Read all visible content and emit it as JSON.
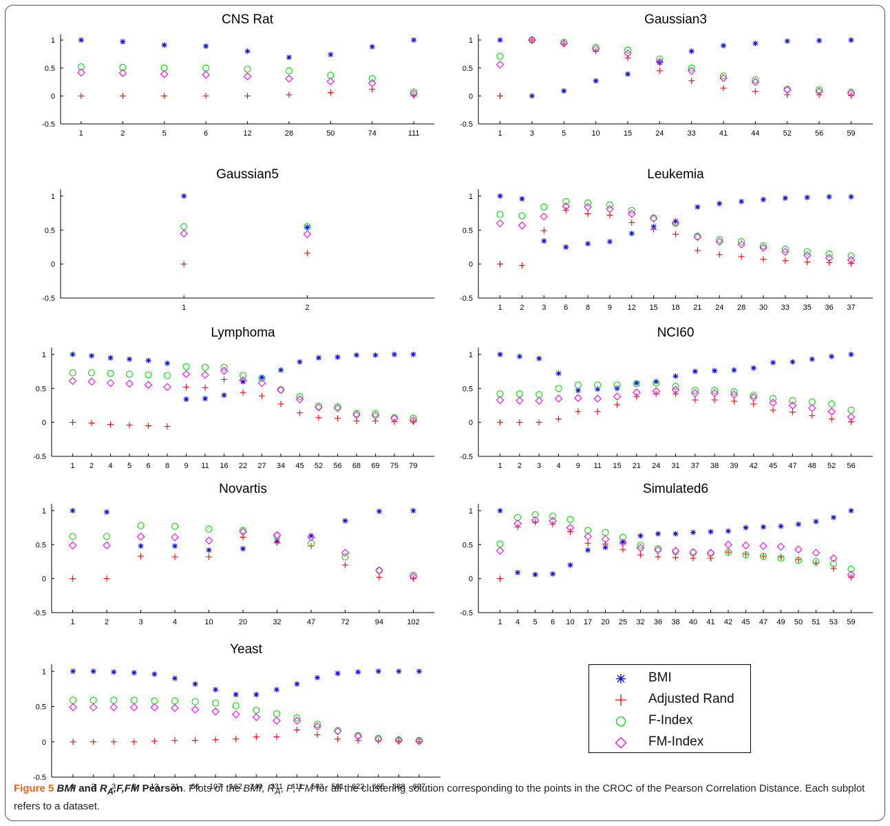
{
  "caption": {
    "figure_label": "Figure 5",
    "title_parts": [
      "BMI",
      " and ",
      "R",
      "A",
      ",F,FM",
      " Pearson"
    ],
    "text_parts": [
      ". Plots of the ",
      "BMI",
      ", ",
      "R",
      "A",
      ", ",
      "F",
      ", ",
      "FM",
      " for all the clustering solution corresponding to the points in the CROC of the Pearson Correlation Distance. Each subplot refers to a dataset."
    ]
  },
  "legend": {
    "position": "lower-right",
    "entries": [
      {
        "label": "BMI",
        "marker": "asterisk",
        "color": "#0000ff"
      },
      {
        "label": "Adjusted Rand",
        "marker": "plus",
        "color": "#ff0000"
      },
      {
        "label": "F-Index",
        "marker": "circle",
        "color": "#00dd00"
      },
      {
        "label": "FM-Index",
        "marker": "diamond",
        "color": "#ff00ff"
      }
    ]
  },
  "chart_data": [
    {
      "type": "scatter",
      "title": "CNS Rat",
      "ylim": [
        -0.5,
        1.1
      ],
      "yticks": [
        "-0.5",
        "0",
        "0.5",
        "1"
      ],
      "categories": [
        "1",
        "2",
        "5",
        "6",
        "12",
        "28",
        "50",
        "74",
        "111"
      ],
      "series": [
        {
          "name": "BMI",
          "values": [
            1.0,
            0.97,
            0.91,
            0.89,
            0.8,
            0.69,
            0.74,
            0.88,
            1.0
          ]
        },
        {
          "name": "Adjusted Rand",
          "values": [
            0.0,
            0.0,
            0.0,
            0.0,
            0.0,
            0.02,
            0.06,
            0.12,
            0.0
          ]
        },
        {
          "name": "F-Index",
          "values": [
            0.52,
            0.51,
            0.5,
            0.5,
            0.48,
            0.45,
            0.37,
            0.31,
            0.07
          ]
        },
        {
          "name": "FM-Index",
          "values": [
            0.42,
            0.41,
            0.39,
            0.38,
            0.35,
            0.31,
            0.26,
            0.23,
            0.04
          ]
        }
      ]
    },
    {
      "type": "scatter",
      "title": "Gaussian3",
      "ylim": [
        -0.5,
        1.1
      ],
      "yticks": [
        "-0.5",
        "0",
        "0.5",
        "1"
      ],
      "categories": [
        "1",
        "3",
        "5",
        "10",
        "15",
        "24",
        "33",
        "41",
        "44",
        "52",
        "56",
        "59"
      ],
      "series": [
        {
          "name": "BMI",
          "values": [
            1.0,
            0.0,
            0.09,
            0.27,
            0.39,
            0.6,
            0.8,
            0.9,
            0.94,
            0.98,
            0.99,
            1.0
          ]
        },
        {
          "name": "Adjusted Rand",
          "values": [
            0.0,
            1.0,
            0.93,
            0.8,
            0.68,
            0.45,
            0.27,
            0.14,
            0.08,
            0.02,
            0.02,
            0.01
          ]
        },
        {
          "name": "F-Index",
          "values": [
            0.71,
            1.0,
            0.96,
            0.87,
            0.82,
            0.66,
            0.5,
            0.36,
            0.29,
            0.12,
            0.11,
            0.07
          ]
        },
        {
          "name": "FM-Index",
          "values": [
            0.56,
            1.0,
            0.94,
            0.84,
            0.76,
            0.61,
            0.45,
            0.32,
            0.25,
            0.11,
            0.08,
            0.05
          ]
        }
      ]
    },
    {
      "type": "scatter",
      "title": "Gaussian5",
      "ylim": [
        -0.5,
        1.1
      ],
      "yticks": [
        "-0.5",
        "0",
        "0.5",
        "1"
      ],
      "categories": [
        "1",
        "2"
      ],
      "series": [
        {
          "name": "BMI",
          "values": [
            1.0,
            0.54
          ]
        },
        {
          "name": "Adjusted Rand",
          "values": [
            0.0,
            0.16
          ]
        },
        {
          "name": "F-Index",
          "values": [
            0.55,
            0.55
          ]
        },
        {
          "name": "FM-Index",
          "values": [
            0.45,
            0.44
          ]
        }
      ]
    },
    {
      "type": "scatter",
      "title": "Leukemia",
      "ylim": [
        -0.5,
        1.1
      ],
      "yticks": [
        "-0.5",
        "0",
        "0.5",
        "1"
      ],
      "categories": [
        "1",
        "2",
        "3",
        "6",
        "8",
        "9",
        "12",
        "15",
        "18",
        "21",
        "24",
        "28",
        "30",
        "33",
        "35",
        "36",
        "37"
      ],
      "series": [
        {
          "name": "BMI",
          "values": [
            1.0,
            0.96,
            0.34,
            0.25,
            0.3,
            0.33,
            0.45,
            0.55,
            0.63,
            0.84,
            0.89,
            0.92,
            0.95,
            0.97,
            0.98,
            0.99,
            0.99
          ]
        },
        {
          "name": "Adjusted Rand",
          "values": [
            0.0,
            -0.02,
            0.49,
            0.79,
            0.74,
            0.72,
            0.61,
            0.51,
            0.44,
            0.2,
            0.14,
            0.11,
            0.07,
            0.05,
            0.03,
            0.02,
            0.01
          ]
        },
        {
          "name": "F-Index",
          "values": [
            0.73,
            0.71,
            0.84,
            0.92,
            0.9,
            0.87,
            0.79,
            0.68,
            0.6,
            0.41,
            0.36,
            0.33,
            0.27,
            0.22,
            0.18,
            0.15,
            0.12
          ]
        },
        {
          "name": "FM-Index",
          "values": [
            0.6,
            0.57,
            0.7,
            0.85,
            0.84,
            0.81,
            0.74,
            0.67,
            0.61,
            0.4,
            0.33,
            0.29,
            0.24,
            0.18,
            0.13,
            0.09,
            0.06
          ]
        }
      ]
    },
    {
      "type": "scatter",
      "title": "Lymphoma",
      "ylim": [
        -0.5,
        1.1
      ],
      "yticks": [
        "-0.5",
        "0",
        "0.5",
        "1"
      ],
      "categories": [
        "1",
        "2",
        "4",
        "5",
        "6",
        "8",
        "9",
        "11",
        "16",
        "22",
        "27",
        "34",
        "45",
        "52",
        "56",
        "68",
        "69",
        "75",
        "79"
      ],
      "series": [
        {
          "name": "BMI",
          "values": [
            1.0,
            0.98,
            0.95,
            0.93,
            0.91,
            0.87,
            0.34,
            0.35,
            0.4,
            0.6,
            0.66,
            0.77,
            0.89,
            0.95,
            0.96,
            0.99,
            0.99,
            1.0,
            1.0
          ]
        },
        {
          "name": "Adjusted Rand",
          "values": [
            0.0,
            -0.01,
            -0.03,
            -0.04,
            -0.05,
            -0.06,
            0.52,
            0.51,
            0.63,
            0.44,
            0.39,
            0.27,
            0.14,
            0.07,
            0.06,
            0.02,
            0.02,
            0.01,
            0.01
          ]
        },
        {
          "name": "F-Index",
          "values": [
            0.73,
            0.73,
            0.72,
            0.71,
            0.7,
            0.69,
            0.82,
            0.81,
            0.81,
            0.69,
            0.65,
            0.48,
            0.38,
            0.24,
            0.23,
            0.13,
            0.13,
            0.07,
            0.06
          ]
        },
        {
          "name": "FM-Index",
          "values": [
            0.61,
            0.6,
            0.58,
            0.57,
            0.55,
            0.52,
            0.71,
            0.7,
            0.76,
            0.62,
            0.58,
            0.48,
            0.34,
            0.22,
            0.21,
            0.11,
            0.1,
            0.06,
            0.03
          ]
        }
      ]
    },
    {
      "type": "scatter",
      "title": "NCI60",
      "ylim": [
        -0.5,
        1.1
      ],
      "yticks": [
        "-0.5",
        "0",
        "0.5",
        "1"
      ],
      "categories": [
        "1",
        "2",
        "3",
        "4",
        "9",
        "11",
        "15",
        "21",
        "24",
        "31",
        "37",
        "38",
        "39",
        "42",
        "45",
        "47",
        "48",
        "52",
        "56"
      ],
      "series": [
        {
          "name": "BMI",
          "values": [
            1.0,
            0.97,
            0.94,
            0.72,
            0.47,
            0.49,
            0.5,
            0.58,
            0.6,
            0.68,
            0.75,
            0.76,
            0.77,
            0.8,
            0.88,
            0.89,
            0.93,
            0.97,
            1.0
          ]
        },
        {
          "name": "Adjusted Rand",
          "values": [
            0.0,
            0.0,
            0.0,
            0.05,
            0.16,
            0.16,
            0.26,
            0.38,
            0.42,
            0.42,
            0.33,
            0.33,
            0.31,
            0.27,
            0.18,
            0.15,
            0.1,
            0.05,
            0.01
          ]
        },
        {
          "name": "F-Index",
          "values": [
            0.42,
            0.42,
            0.41,
            0.5,
            0.55,
            0.55,
            0.55,
            0.57,
            0.58,
            0.53,
            0.47,
            0.47,
            0.45,
            0.4,
            0.35,
            0.32,
            0.3,
            0.27,
            0.18
          ]
        },
        {
          "name": "FM-Index",
          "values": [
            0.33,
            0.32,
            0.32,
            0.35,
            0.36,
            0.35,
            0.38,
            0.44,
            0.46,
            0.48,
            0.43,
            0.43,
            0.41,
            0.37,
            0.29,
            0.25,
            0.21,
            0.16,
            0.08
          ]
        }
      ]
    },
    {
      "type": "scatter",
      "title": "Novartis",
      "ylim": [
        -0.5,
        1.1
      ],
      "yticks": [
        "-0.5",
        "0",
        "0.5",
        "1"
      ],
      "categories": [
        "1",
        "2",
        "3",
        "4",
        "10",
        "20",
        "32",
        "47",
        "72",
        "94",
        "102"
      ],
      "series": [
        {
          "name": "BMI",
          "values": [
            1.0,
            0.98,
            0.48,
            0.48,
            0.42,
            0.44,
            0.55,
            0.63,
            0.85,
            0.99,
            1.0
          ]
        },
        {
          "name": "Adjusted Rand",
          "values": [
            0.0,
            0.0,
            0.33,
            0.32,
            0.32,
            0.61,
            0.53,
            0.48,
            0.2,
            0.02,
            0.0
          ]
        },
        {
          "name": "F-Index",
          "values": [
            0.62,
            0.62,
            0.78,
            0.77,
            0.73,
            0.71,
            0.63,
            0.52,
            0.32,
            0.12,
            0.05
          ]
        },
        {
          "name": "FM-Index",
          "values": [
            0.49,
            0.49,
            0.62,
            0.61,
            0.56,
            0.69,
            0.64,
            0.61,
            0.38,
            0.12,
            0.03
          ]
        }
      ]
    },
    {
      "type": "scatter",
      "title": "Simulated6",
      "ylim": [
        -0.5,
        1.1
      ],
      "yticks": [
        "-0.5",
        "0",
        "0.5",
        "1"
      ],
      "categories": [
        "1",
        "4",
        "5",
        "6",
        "10",
        "17",
        "20",
        "25",
        "32",
        "36",
        "38",
        "40",
        "41",
        "42",
        "45",
        "47",
        "49",
        "50",
        "51",
        "53",
        "59"
      ],
      "series": [
        {
          "name": "BMI",
          "values": [
            1.0,
            0.09,
            0.06,
            0.07,
            0.2,
            0.42,
            0.46,
            0.54,
            0.63,
            0.66,
            0.66,
            0.68,
            0.69,
            0.7,
            0.75,
            0.76,
            0.77,
            0.8,
            0.84,
            0.9,
            1.0
          ]
        },
        {
          "name": "Adjusted Rand",
          "values": [
            0.0,
            0.76,
            0.83,
            0.8,
            0.69,
            0.52,
            0.51,
            0.43,
            0.35,
            0.32,
            0.31,
            0.3,
            0.3,
            0.39,
            0.36,
            0.33,
            0.32,
            0.28,
            0.23,
            0.15,
            0.02
          ]
        },
        {
          "name": "F-Index",
          "values": [
            0.51,
            0.9,
            0.94,
            0.92,
            0.87,
            0.71,
            0.68,
            0.61,
            0.49,
            0.44,
            0.4,
            0.38,
            0.37,
            0.39,
            0.35,
            0.33,
            0.3,
            0.27,
            0.25,
            0.22,
            0.14
          ]
        },
        {
          "name": "FM-Index",
          "values": [
            0.41,
            0.81,
            0.86,
            0.85,
            0.75,
            0.62,
            0.58,
            0.53,
            0.45,
            0.42,
            0.41,
            0.39,
            0.38,
            0.5,
            0.49,
            0.48,
            0.47,
            0.43,
            0.38,
            0.3,
            0.06
          ]
        }
      ]
    },
    {
      "type": "scatter",
      "title": "Yeast",
      "ylim": [
        -0.5,
        1.1
      ],
      "yticks": [
        "-0.5",
        "0",
        "0.5",
        "1"
      ],
      "categories": [
        "1",
        "2",
        "3",
        "8",
        "13",
        "31",
        "66",
        "107",
        "162",
        "240",
        "331",
        "411",
        "503",
        "561",
        "622",
        "665",
        "688",
        "697"
      ],
      "series": [
        {
          "name": "BMI",
          "values": [
            1.0,
            1.0,
            0.99,
            0.98,
            0.96,
            0.9,
            0.82,
            0.74,
            0.67,
            0.67,
            0.74,
            0.82,
            0.91,
            0.97,
            0.99,
            1.0,
            1.0,
            1.0
          ]
        },
        {
          "name": "Adjusted Rand",
          "values": [
            0.0,
            0.0,
            0.0,
            0.0,
            0.01,
            0.02,
            0.02,
            0.03,
            0.04,
            0.07,
            0.07,
            0.17,
            0.1,
            0.04,
            0.02,
            0.01,
            0.01,
            0.0
          ]
        },
        {
          "name": "F-Index",
          "values": [
            0.59,
            0.59,
            0.59,
            0.59,
            0.58,
            0.58,
            0.57,
            0.55,
            0.51,
            0.45,
            0.4,
            0.34,
            0.25,
            0.16,
            0.09,
            0.05,
            0.03,
            0.02
          ]
        },
        {
          "name": "FM-Index",
          "values": [
            0.49,
            0.49,
            0.49,
            0.49,
            0.49,
            0.48,
            0.46,
            0.43,
            0.39,
            0.35,
            0.3,
            0.3,
            0.22,
            0.15,
            0.08,
            0.04,
            0.02,
            0.01
          ]
        }
      ]
    }
  ]
}
